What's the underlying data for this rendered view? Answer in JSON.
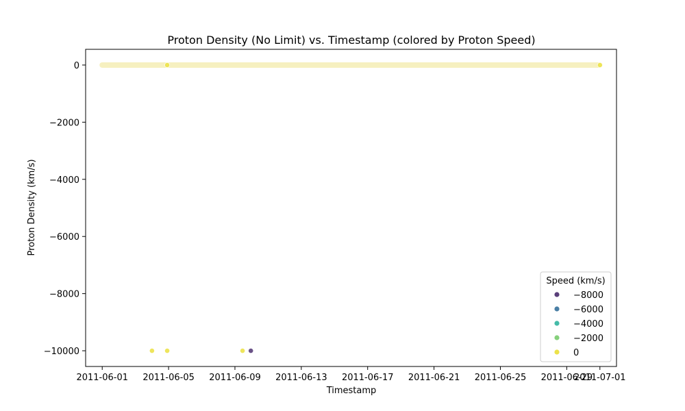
{
  "chart_data": {
    "type": "scatter",
    "title": "Proton Density (No Limit) vs. Timestamp (colored by Proton Speed)",
    "xlabel": "Timestamp",
    "ylabel": "Proton Density (km/s)",
    "xlim": [
      "2011-05-31T00:00",
      "2011-07-02T00:00"
    ],
    "ylim": [
      -10550,
      550
    ],
    "x_ticks": [
      "2011-06-01",
      "2011-06-05",
      "2011-06-09",
      "2011-06-13",
      "2011-06-17",
      "2011-06-21",
      "2011-06-25",
      "2011-06-29",
      "2011-07-01"
    ],
    "y_ticks": [
      0,
      -2000,
      -4000,
      -6000,
      -8000,
      -10000
    ],
    "y_tick_labels": [
      "0",
      "−2000",
      "−4000",
      "−6000",
      "−8000",
      "−10000"
    ],
    "grid": false,
    "legend": {
      "title": "Speed (km/s)",
      "placement": "bottom-right",
      "entries": [
        {
          "label": "−8000",
          "color": "#5a3f7a"
        },
        {
          "label": "−6000",
          "color": "#4a7fa5"
        },
        {
          "label": "−4000",
          "color": "#45bba8"
        },
        {
          "label": "−2000",
          "color": "#86d07c"
        },
        {
          "label": "0",
          "color": "#ece24a"
        }
      ]
    },
    "baseline_band": {
      "x_start": "2011-06-01T00:00",
      "x_end": "2011-07-01T00:00",
      "y": 0,
      "speed": 400,
      "color": "#f6f0c0"
    },
    "points": [
      {
        "x": "2011-06-04T00:00",
        "y": -10000,
        "speed": 0,
        "color": "#ece24a"
      },
      {
        "x": "2011-06-04T22:00",
        "y": -10000,
        "speed": 0,
        "color": "#ece24a"
      },
      {
        "x": "2011-06-09T11:00",
        "y": -10000,
        "speed": 0,
        "color": "#ece24a"
      },
      {
        "x": "2011-06-09T23:00",
        "y": -10000,
        "speed": -9999,
        "color": "#5a3f7a"
      },
      {
        "x": "2011-06-04T22:00",
        "y": 0,
        "speed": 0,
        "color": "#ece24a"
      },
      {
        "x": "2011-07-01T00:00",
        "y": 0,
        "speed": 0,
        "color": "#ece24a"
      }
    ]
  }
}
